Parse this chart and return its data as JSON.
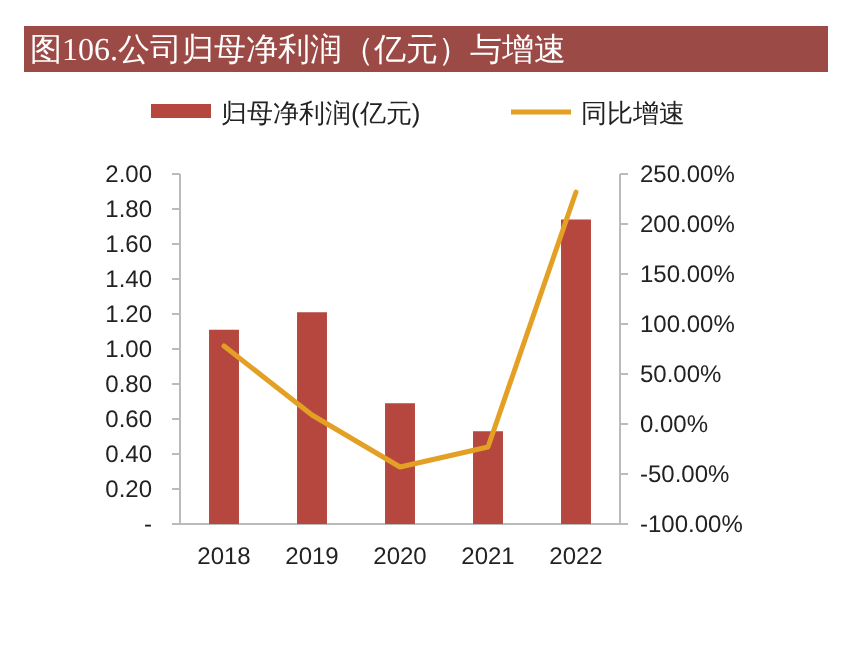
{
  "chart_data": {
    "type": "bar",
    "title": "图106.公司归母净利润（亿元）与增速",
    "categories": [
      "2018",
      "2019",
      "2020",
      "2021",
      "2022"
    ],
    "series": [
      {
        "name": "归母净利润(亿元)",
        "color": "#b5473f",
        "values": [
          1.11,
          1.21,
          0.69,
          0.53,
          1.74
        ]
      },
      {
        "name": "同比增速",
        "type": "line",
        "axis": "y2",
        "color": "#e3a024",
        "values": [
          78,
          9,
          -43,
          -23,
          232
        ]
      }
    ],
    "ylim": [
      0,
      2
    ],
    "yticks": [
      {
        "value": 0,
        "label": "-"
      },
      {
        "value": 0.2,
        "label": "0.20"
      },
      {
        "value": 0.4,
        "label": "0.40"
      },
      {
        "value": 0.6,
        "label": "0.60"
      },
      {
        "value": 0.8,
        "label": "0.80"
      },
      {
        "value": 1,
        "label": "1.00"
      },
      {
        "value": 1.2,
        "label": "1.20"
      },
      {
        "value": 1.4,
        "label": "1.40"
      },
      {
        "value": 1.6,
        "label": "1.60"
      },
      {
        "value": 1.8,
        "label": "1.80"
      },
      {
        "value": 2,
        "label": "2.00"
      }
    ],
    "y2lim": [
      -100,
      250
    ],
    "y2ticks": [
      {
        "value": -100,
        "label": "-100.00%"
      },
      {
        "value": -50,
        "label": "-50.00%"
      },
      {
        "value": 0,
        "label": "0.00%"
      },
      {
        "value": 50,
        "label": "50.00%"
      },
      {
        "value": 100,
        "label": "100.00%"
      },
      {
        "value": 150,
        "label": "150.00%"
      },
      {
        "value": 200,
        "label": "200.00%"
      },
      {
        "value": 250,
        "label": "250.00%"
      }
    ],
    "legend": "top",
    "marker": "none"
  }
}
